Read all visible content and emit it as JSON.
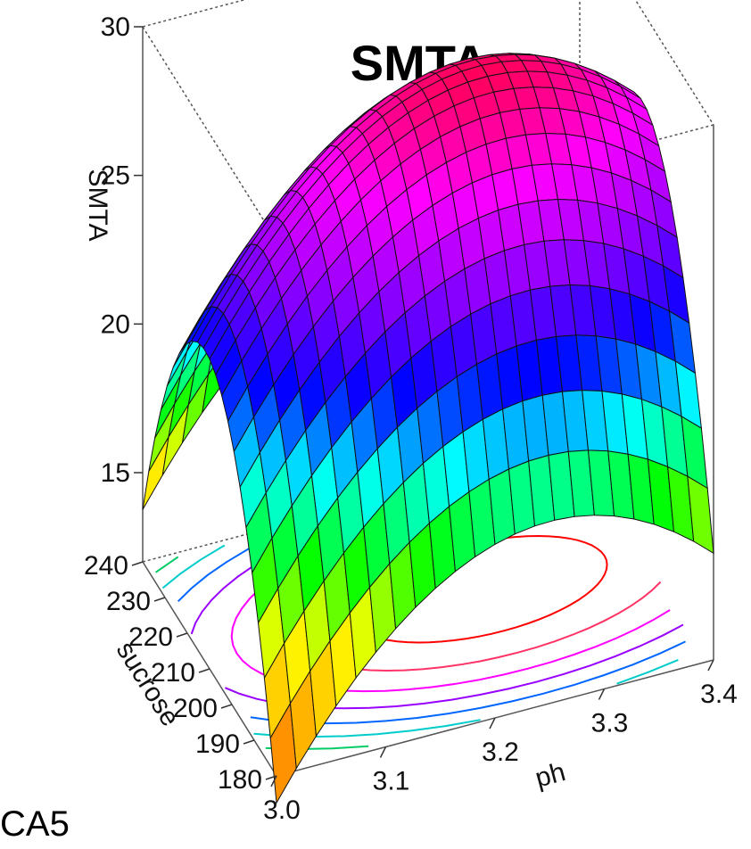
{
  "title": "SMTA",
  "corner_label": "CA5",
  "chart_data": {
    "type": "surface3d",
    "title": "SMTA",
    "zlabel": "SMTA",
    "xlabel": "ph",
    "ylabel": "sucrose",
    "x_ticks": [
      "3.0",
      "3.1",
      "3.2",
      "3.3",
      "3.4"
    ],
    "y_ticks": [
      "180",
      "190",
      "200",
      "210",
      "220",
      "230",
      "240"
    ],
    "z_ticks": [
      "15",
      "20",
      "25",
      "30"
    ],
    "xlim": [
      3.0,
      3.4
    ],
    "ylim": [
      180,
      240
    ],
    "zlim": [
      12,
      30
    ],
    "surface_peak": {
      "ph": 3.25,
      "sucrose": 212,
      "SMTA": 29.5
    },
    "contours_on_base": true,
    "colormap": [
      "#ff0033",
      "#ff00ff",
      "#8000ff",
      "#0000ff",
      "#00ffff",
      "#00ff00",
      "#ffff00",
      "#ff8000"
    ]
  }
}
